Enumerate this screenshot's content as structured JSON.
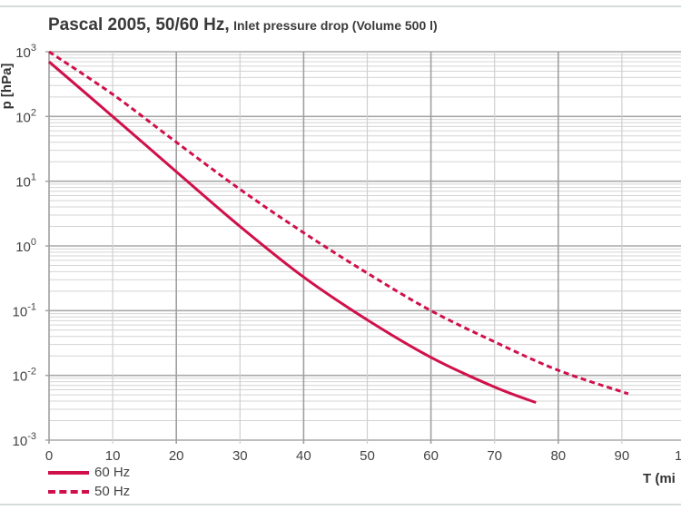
{
  "chart_data": {
    "type": "line",
    "title": "Pascal 2005, 50/60 Hz,",
    "subtitle": "Inlet pressure drop (Volume 500 l)",
    "xlabel": "T (mi",
    "ylabel": "p [hPa]",
    "xlim": [
      0,
      100
    ],
    "ylim": [
      0.001,
      1000
    ],
    "yscale": "log",
    "grid": true,
    "legend_position": "bottom-left",
    "x_ticks": [
      "0",
      "10",
      "20",
      "30",
      "40",
      "50",
      "60",
      "70",
      "80",
      "90",
      "1"
    ],
    "y_ticks": [
      {
        "base": "10",
        "exp": "3"
      },
      {
        "base": "10",
        "exp": "2"
      },
      {
        "base": "10",
        "exp": "1"
      },
      {
        "base": "10",
        "exp": "0"
      },
      {
        "base": "10",
        "exp": "-1"
      },
      {
        "base": "10",
        "exp": "-2"
      },
      {
        "base": "10",
        "exp": "-3"
      }
    ],
    "series": [
      {
        "name": "60 Hz",
        "style": "solid",
        "color": "#d0104a",
        "x": [
          0,
          10,
          20,
          30,
          40,
          50,
          60,
          70,
          76.5
        ],
        "y": [
          700,
          100,
          14,
          2.0,
          0.33,
          0.072,
          0.019,
          0.0066,
          0.0038
        ]
      },
      {
        "name": "50 Hz",
        "style": "dashed",
        "color": "#d0104a",
        "x": [
          0,
          10,
          20,
          30,
          40,
          50,
          60,
          70,
          80,
          91
        ],
        "y": [
          1000,
          220,
          40,
          7.5,
          1.6,
          0.38,
          0.1,
          0.033,
          0.012,
          0.0052
        ]
      }
    ]
  }
}
